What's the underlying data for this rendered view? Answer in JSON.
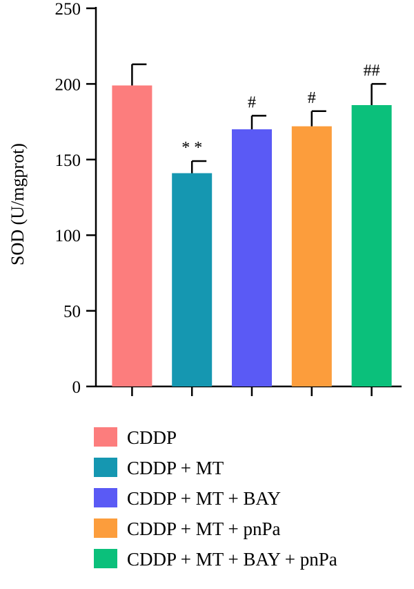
{
  "chart_data": {
    "type": "bar",
    "title": "",
    "xlabel": "",
    "ylabel": "SOD (U/mgprot)",
    "ylim": [
      0,
      250
    ],
    "yticks": [
      0,
      50,
      100,
      150,
      200,
      250
    ],
    "categories": [
      "CDDP",
      "CDDP + MT",
      "CDDP + MT + BAY",
      "CDDP + MT + pnPa",
      "CDDP + MT + BAY + pnPa"
    ],
    "values": [
      199,
      141,
      170,
      172,
      186
    ],
    "errors": [
      14,
      8,
      9,
      10,
      14
    ],
    "annotations": [
      "",
      "**",
      "#",
      "#",
      "##"
    ],
    "colors": [
      "#fc7d7d",
      "#1597b1",
      "#5a5af5",
      "#fc9d3c",
      "#0bc07b"
    ],
    "legend": {
      "position": "bottom",
      "entries": [
        "CDDP",
        "CDDP + MT",
        "CDDP + MT + BAY",
        "CDDP + MT + pnPa",
        "CDDP + MT + BAY + pnPa"
      ]
    },
    "grid": false
  }
}
